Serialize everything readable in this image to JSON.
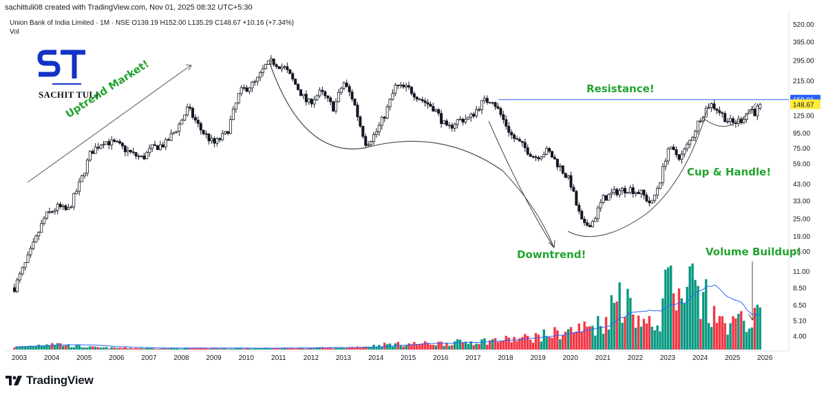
{
  "header": {
    "created_by": "sachittuli08 created with TradingView.com, Nov 01, 2025 08:32 UTC+5:30",
    "symbol_line": "Union Bank of India Limited · 1M · NSE  O139.19  H152.00  L135.29  C148.67  +10.16 (+7.34%)",
    "volume_label": "Vol"
  },
  "logo": {
    "name": "SACHIT TULI",
    "monogram": "ST",
    "color": "#1432c8"
  },
  "annotations": {
    "uptrend": "Uptrend Market!",
    "resistance": "Resistance!",
    "downtrend": "Downtrend!",
    "cup_handle": "Cup & Handle!",
    "volume_buildup": "Volume Buildup!"
  },
  "footer": {
    "brand": "TradingView"
  },
  "colors": {
    "up": "#089981",
    "down": "#f23645",
    "candle": "#131722",
    "resistance_line": "#2962ff",
    "annotation": "#22a42e",
    "price_label_bg": "#ffeb3b",
    "resistance_label_bg": "#2962ff",
    "vol_ma": "#2962ff"
  },
  "chart_data": {
    "type": "candlestick",
    "interval": "1M",
    "y_scale": "log",
    "y_ticks": [
      "520.00",
      "395.00",
      "295.00",
      "215.00",
      "165.00",
      "125.00",
      "95.00",
      "75.00",
      "59.00",
      "43.00",
      "33.00",
      "25.00",
      "19.00",
      "15.00",
      "11.00",
      "8.50",
      "6.50",
      "5.10",
      "4.00"
    ],
    "x_ticks": [
      "2003",
      "2004",
      "2005",
      "2006",
      "2007",
      "2008",
      "2009",
      "2010",
      "2011",
      "2012",
      "2013",
      "2014",
      "2015",
      "2016",
      "2017",
      "2018",
      "2019",
      "2020",
      "2021",
      "2022",
      "2023",
      "2024",
      "2025",
      "2026"
    ],
    "resistance": 159.91,
    "resistance_label": "159.91",
    "last_close": 148.67,
    "last_close_label": "148.67",
    "last_bar": {
      "open": 139.19,
      "high": 152.0,
      "low": 135.29,
      "close": 148.67,
      "change": 10.16,
      "change_pct": 7.34
    },
    "price_path": [
      [
        2002.85,
        8.5
      ],
      [
        2003.3,
        14
      ],
      [
        2003.8,
        26
      ],
      [
        2004.2,
        30
      ],
      [
        2004.5,
        28
      ],
      [
        2004.9,
        45
      ],
      [
        2005.2,
        70
      ],
      [
        2005.6,
        84
      ],
      [
        2006.0,
        80
      ],
      [
        2006.5,
        68
      ],
      [
        2006.8,
        64
      ],
      [
        2007.1,
        75
      ],
      [
        2007.5,
        80
      ],
      [
        2007.9,
        105
      ],
      [
        2008.2,
        140
      ],
      [
        2008.6,
        100
      ],
      [
        2009.0,
        80
      ],
      [
        2009.4,
        95
      ],
      [
        2009.8,
        180
      ],
      [
        2010.3,
        210
      ],
      [
        2010.6,
        270
      ],
      [
        2010.8,
        290
      ],
      [
        2011.2,
        260
      ],
      [
        2011.6,
        190
      ],
      [
        2011.9,
        150
      ],
      [
        2012.3,
        180
      ],
      [
        2012.7,
        140
      ],
      [
        2013.0,
        210
      ],
      [
        2013.3,
        160
      ],
      [
        2013.5,
        110
      ],
      [
        2013.7,
        80
      ],
      [
        2014.0,
        95
      ],
      [
        2014.3,
        130
      ],
      [
        2014.6,
        195
      ],
      [
        2015.0,
        190
      ],
      [
        2015.4,
        160
      ],
      [
        2015.8,
        140
      ],
      [
        2016.2,
        100
      ],
      [
        2016.5,
        115
      ],
      [
        2016.9,
        120
      ],
      [
        2017.3,
        155
      ],
      [
        2017.6,
        160
      ],
      [
        2017.9,
        120
      ],
      [
        2018.2,
        90
      ],
      [
        2018.6,
        75
      ],
      [
        2018.9,
        65
      ],
      [
        2019.3,
        72
      ],
      [
        2019.7,
        55
      ],
      [
        2020.0,
        44
      ],
      [
        2020.2,
        30
      ],
      [
        2020.4,
        22
      ],
      [
        2020.7,
        24
      ],
      [
        2021.0,
        34
      ],
      [
        2021.4,
        38
      ],
      [
        2021.8,
        40
      ],
      [
        2022.2,
        37
      ],
      [
        2022.5,
        31
      ],
      [
        2022.8,
        48
      ],
      [
        2023.0,
        75
      ],
      [
        2023.4,
        65
      ],
      [
        2023.7,
        85
      ],
      [
        2024.0,
        120
      ],
      [
        2024.3,
        150
      ],
      [
        2024.5,
        140
      ],
      [
        2024.8,
        118
      ],
      [
        2025.0,
        110
      ],
      [
        2025.3,
        118
      ],
      [
        2025.55,
        140
      ],
      [
        2025.7,
        130
      ],
      [
        2025.83,
        148.67
      ]
    ],
    "volume_path": [
      [
        2003.0,
        0.4
      ],
      [
        2004.0,
        1.1
      ],
      [
        2004.6,
        0.6
      ],
      [
        2005.5,
        0.3
      ],
      [
        2007.0,
        0.22
      ],
      [
        2010.0,
        0.2
      ],
      [
        2013.0,
        0.3
      ],
      [
        2014.3,
        0.8
      ],
      [
        2016.0,
        1.0
      ],
      [
        2017.5,
        1.4
      ],
      [
        2018.5,
        1.7
      ],
      [
        2019.5,
        2.5
      ],
      [
        2020.3,
        3.2
      ],
      [
        2021.0,
        4.2
      ],
      [
        2021.5,
        8.0
      ],
      [
        2022.0,
        5.5
      ],
      [
        2022.5,
        3.5
      ],
      [
        2022.8,
        5.0
      ],
      [
        2023.0,
        11.5
      ],
      [
        2023.5,
        5.5
      ],
      [
        2023.7,
        12.5
      ],
      [
        2024.0,
        6.8
      ],
      [
        2024.5,
        4.5
      ],
      [
        2025.0,
        4.0
      ],
      [
        2025.83,
        5.0
      ]
    ],
    "volume_spikes": [
      [
        2021.25,
        8.5
      ],
      [
        2021.5,
        10.5
      ],
      [
        2021.75,
        9.5
      ],
      [
        2022.95,
        12.5
      ],
      [
        2023.7,
        13.0
      ],
      [
        2024.15,
        11.0
      ]
    ],
    "price_axis_min": 3.6,
    "price_axis_max": 560
  }
}
